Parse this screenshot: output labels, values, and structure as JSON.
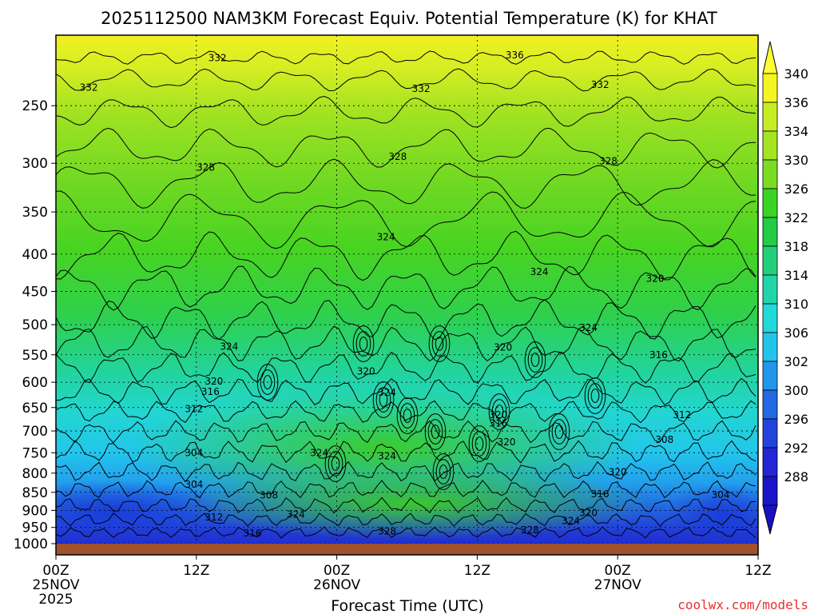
{
  "chart_data": {
    "type": "heatmap",
    "title": "2025112500 NAM3KM Forecast Equiv. Potential Temperature (K) for KHAT",
    "xlabel": "Forecast Time (UTC)",
    "ylabel": "",
    "credit": "coolwx.com/models",
    "y_scale": "log-pressure (inverted)",
    "ylim": [
      1000,
      200
    ],
    "y_ticks": [
      250,
      300,
      350,
      400,
      450,
      500,
      550,
      600,
      650,
      700,
      750,
      800,
      850,
      900,
      950,
      1000
    ],
    "x_ticks": [
      {
        "hours": 0,
        "line1": "00Z",
        "line2": "25NOV",
        "line3": "2025"
      },
      {
        "hours": 12,
        "line1": "12Z",
        "line2": "",
        "line3": ""
      },
      {
        "hours": 24,
        "line1": "00Z",
        "line2": "26NOV",
        "line3": ""
      },
      {
        "hours": 36,
        "line1": "12Z",
        "line2": "",
        "line3": ""
      },
      {
        "hours": 48,
        "line1": "00Z",
        "line2": "27NOV",
        "line3": ""
      },
      {
        "hours": 60,
        "line1": "12Z",
        "line2": "",
        "line3": ""
      }
    ],
    "xlim": [
      0,
      60
    ],
    "grid": true,
    "colorbar": {
      "labels": [
        340,
        336,
        334,
        330,
        326,
        322,
        318,
        314,
        310,
        306,
        302,
        300,
        296,
        292,
        288
      ],
      "colors": [
        "#f5f522",
        "#c8ec22",
        "#a6e322",
        "#7cdc22",
        "#3cd422",
        "#22cc44",
        "#22d07a",
        "#22d4aa",
        "#22d8d8",
        "#22c4ec",
        "#2296ec",
        "#2268e4",
        "#2244dc",
        "#2226d4",
        "#1a14c8"
      ],
      "extend": "both"
    },
    "contour_labels": [
      {
        "text": "332",
        "hours": 13.8,
        "p": 215
      },
      {
        "text": "336",
        "hours": 39.2,
        "p": 213
      },
      {
        "text": "332",
        "hours": 2.8,
        "p": 236
      },
      {
        "text": "332",
        "hours": 31.2,
        "p": 237
      },
      {
        "text": "332",
        "hours": 46.5,
        "p": 234
      },
      {
        "text": "328",
        "hours": 12.8,
        "p": 304
      },
      {
        "text": "328",
        "hours": 29.2,
        "p": 294
      },
      {
        "text": "328",
        "hours": 47.2,
        "p": 298
      },
      {
        "text": "324",
        "hours": 28.2,
        "p": 379
      },
      {
        "text": "324",
        "hours": 41.3,
        "p": 423
      },
      {
        "text": "320",
        "hours": 51.2,
        "p": 432
      },
      {
        "text": "324",
        "hours": 14.8,
        "p": 536
      },
      {
        "text": "324",
        "hours": 45.5,
        "p": 505
      },
      {
        "text": "320",
        "hours": 38.2,
        "p": 537
      },
      {
        "text": "316",
        "hours": 51.5,
        "p": 550
      },
      {
        "text": "320",
        "hours": 13.5,
        "p": 598
      },
      {
        "text": "320",
        "hours": 26.5,
        "p": 580
      },
      {
        "text": "316",
        "hours": 13.2,
        "p": 618
      },
      {
        "text": "324",
        "hours": 28.3,
        "p": 620
      },
      {
        "text": "312",
        "hours": 11.8,
        "p": 653
      },
      {
        "text": "320",
        "hours": 37.8,
        "p": 665
      },
      {
        "text": "316",
        "hours": 37.8,
        "p": 683
      },
      {
        "text": "312",
        "hours": 53.5,
        "p": 665
      },
      {
        "text": "320",
        "hours": 38.5,
        "p": 725
      },
      {
        "text": "308",
        "hours": 52.0,
        "p": 720
      },
      {
        "text": "304",
        "hours": 11.8,
        "p": 750
      },
      {
        "text": "324",
        "hours": 22.5,
        "p": 750
      },
      {
        "text": "324",
        "hours": 28.3,
        "p": 758
      },
      {
        "text": "320",
        "hours": 48.0,
        "p": 797
      },
      {
        "text": "304",
        "hours": 11.8,
        "p": 829
      },
      {
        "text": "316",
        "hours": 46.5,
        "p": 855
      },
      {
        "text": "304",
        "hours": 56.8,
        "p": 857
      },
      {
        "text": "308",
        "hours": 18.2,
        "p": 858
      },
      {
        "text": "312",
        "hours": 13.5,
        "p": 920
      },
      {
        "text": "324",
        "hours": 20.5,
        "p": 912
      },
      {
        "text": "320",
        "hours": 45.5,
        "p": 907
      },
      {
        "text": "324",
        "hours": 44.0,
        "p": 930
      },
      {
        "text": "316",
        "hours": 16.8,
        "p": 968
      },
      {
        "text": "328",
        "hours": 28.3,
        "p": 962
      },
      {
        "text": "328",
        "hours": 40.5,
        "p": 958
      }
    ]
  }
}
